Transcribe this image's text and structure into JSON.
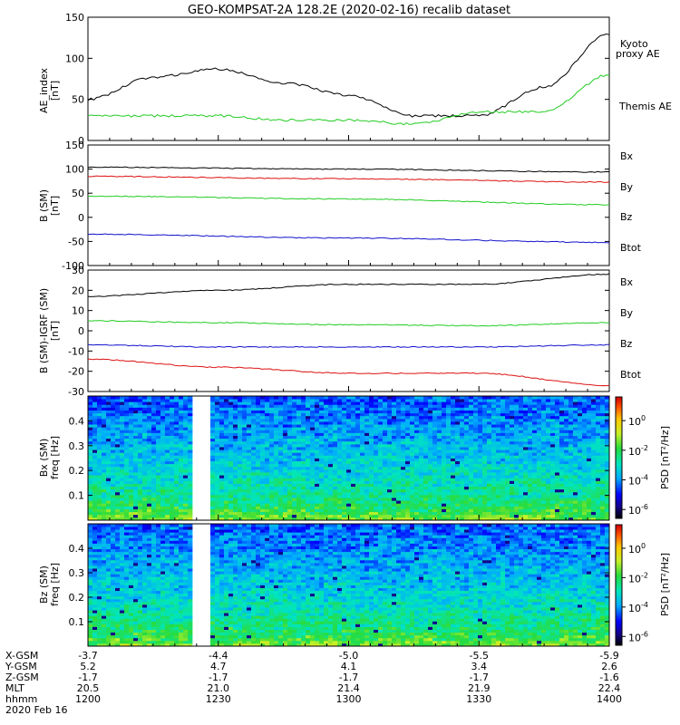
{
  "title": "GEO-KOMPSAT-2A 128.2E (2020-02-16) recalib dataset",
  "colors": {
    "black": "#000000",
    "green": "#22cc22",
    "red": "#dd1111",
    "blue": "#1111cc"
  },
  "x_axis": {
    "tick_times": [
      "1200",
      "1230",
      "1300",
      "1330",
      "1400"
    ],
    "rows": [
      {
        "label": "X-GSM",
        "values": [
          "-3.7",
          "-4.4",
          "-5.0",
          "-5.5",
          "-5.9"
        ]
      },
      {
        "label": "Y-GSM",
        "values": [
          "5.2",
          "4.7",
          "4.1",
          "3.4",
          "2.6"
        ]
      },
      {
        "label": "Z-GSM",
        "values": [
          "-1.7",
          "-1.7",
          "-1.7",
          "-1.7",
          "-1.6"
        ]
      },
      {
        "label": "MLT",
        "values": [
          "20.5",
          "21.0",
          "21.4",
          "21.9",
          "22.4"
        ]
      },
      {
        "label": "hhmm",
        "values": [
          "1200",
          "1230",
          "1300",
          "1330",
          "1400"
        ]
      }
    ],
    "date": "2020 Feb 16"
  },
  "colorbar": {
    "label": "PSD [nT²/Hz]",
    "ticks": [
      {
        "base": "10",
        "exp": "0",
        "value": 0
      },
      {
        "base": "10",
        "exp": "-2",
        "value": -2
      },
      {
        "base": "10",
        "exp": "-4",
        "value": -4
      },
      {
        "base": "10",
        "exp": "-6",
        "value": -6
      }
    ],
    "range": [
      -6.6,
      1.6
    ]
  },
  "chart_data": [
    {
      "type": "line",
      "ylabel": "AE_index [nT]",
      "ylim": [
        0,
        150
      ],
      "yticks": [
        "0",
        "50",
        "100",
        "150"
      ],
      "x": [
        "12:00",
        "12:15",
        "12:30",
        "12:45",
        "13:00",
        "13:15",
        "13:30",
        "13:45",
        "14:00"
      ],
      "legend": [
        {
          "text": "Kyoto proxy AE",
          "color": "#22cc22"
        },
        {
          "text": "Themis AE",
          "color": "#000000"
        }
      ],
      "series": [
        {
          "name": "Themis AE",
          "color": "#000000",
          "values": [
            50,
            77,
            87,
            70,
            55,
            30,
            30,
            65,
            130
          ]
        },
        {
          "name": "Kyoto proxy AE",
          "color": "#22cc22",
          "values": [
            30,
            30,
            30,
            25,
            25,
            20,
            35,
            35,
            80
          ]
        }
      ]
    },
    {
      "type": "line",
      "ylabel": "B (SM) [nT]",
      "ylim": [
        -100,
        150
      ],
      "yticks": [
        "-100",
        "-50",
        "0",
        "50",
        "100",
        "150"
      ],
      "x": [
        "12:00",
        "13:00",
        "14:00"
      ],
      "legend": [
        {
          "text": "Bx",
          "color": "#1111cc"
        },
        {
          "text": "By",
          "color": "#22cc22"
        },
        {
          "text": "Bz",
          "color": "#dd1111"
        },
        {
          "text": "Btot",
          "color": "#000000"
        }
      ],
      "series": [
        {
          "name": "Btot",
          "color": "#000000",
          "values": [
            104,
            100,
            94
          ]
        },
        {
          "name": "Bz",
          "color": "#dd1111",
          "values": [
            85,
            80,
            73
          ]
        },
        {
          "name": "By",
          "color": "#22cc22",
          "values": [
            44,
            38,
            26
          ]
        },
        {
          "name": "Bx",
          "color": "#1111cc",
          "values": [
            -35,
            -43,
            -52
          ]
        }
      ]
    },
    {
      "type": "line",
      "ylabel": "B (SM)-IGRF (SM) [nT]",
      "ylim": [
        -30,
        30
      ],
      "yticks": [
        "-30",
        "-20",
        "-10",
        "0",
        "10",
        "20",
        "30"
      ],
      "x": [
        "12:00",
        "12:30",
        "13:00",
        "13:30",
        "14:00"
      ],
      "legend": [
        {
          "text": "Bx",
          "color": "#1111cc"
        },
        {
          "text": "By",
          "color": "#22cc22"
        },
        {
          "text": "Bz",
          "color": "#dd1111"
        },
        {
          "text": "Btot",
          "color": "#000000"
        }
      ],
      "series": [
        {
          "name": "Btot",
          "color": "#000000",
          "values": [
            17,
            20,
            23,
            23,
            28
          ]
        },
        {
          "name": "By",
          "color": "#22cc22",
          "values": [
            5,
            4,
            3,
            2.5,
            4
          ]
        },
        {
          "name": "Bx",
          "color": "#1111cc",
          "values": [
            -7,
            -8,
            -8,
            -8,
            -7
          ]
        },
        {
          "name": "Bz",
          "color": "#dd1111",
          "values": [
            -14,
            -18,
            -21,
            -21,
            -27
          ]
        }
      ]
    },
    {
      "type": "heatmap",
      "ylabel": "Bx (SM) freq [Hz]",
      "ylim": [
        0,
        0.5
      ],
      "yticks": [
        "0.1",
        "0.2",
        "0.3",
        "0.4"
      ],
      "data_gap": [
        "12:25",
        "12:28"
      ]
    },
    {
      "type": "heatmap",
      "ylabel": "Bz (SM) freq [Hz]",
      "ylim": [
        0,
        0.5
      ],
      "yticks": [
        "0.1",
        "0.2",
        "0.3",
        "0.4"
      ],
      "data_gap": [
        "12:25",
        "12:28"
      ]
    }
  ]
}
